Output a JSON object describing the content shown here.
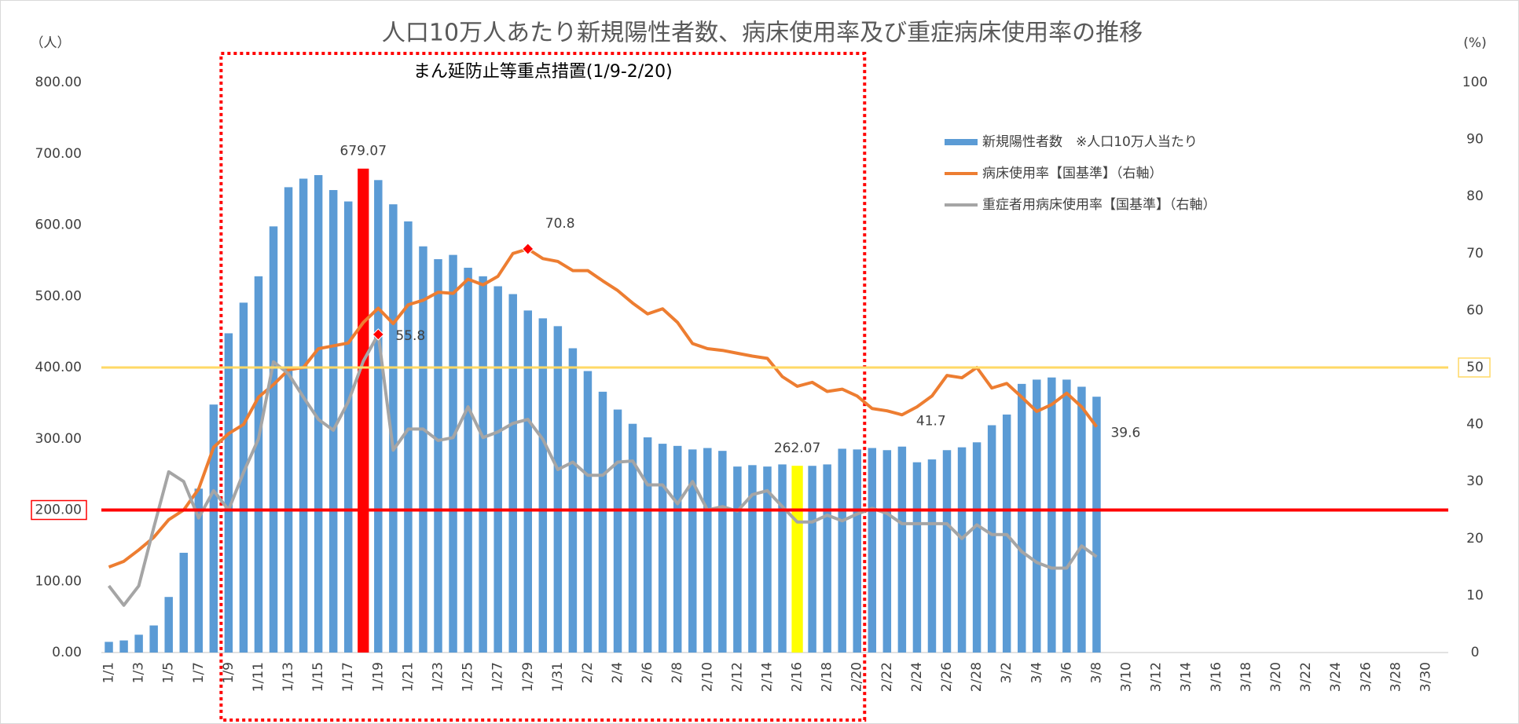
{
  "chart_data": {
    "type": "bar_line",
    "title": "人口10万人あたり新規陽性者数、病床使用率及び重症病床使用率の推移",
    "y_unit": "（人）",
    "y2_unit": "(%)",
    "categories": [
      "1/1",
      null,
      "1/3",
      null,
      "1/5",
      null,
      "1/7",
      null,
      "1/9",
      null,
      "1/11",
      null,
      "1/13",
      null,
      "1/15",
      null,
      "1/17",
      null,
      "1/19",
      null,
      "1/21",
      null,
      "1/23",
      null,
      "1/25",
      null,
      "1/27",
      null,
      "1/29",
      null,
      "1/31",
      null,
      "2/2",
      null,
      "2/4",
      null,
      "2/6",
      null,
      "2/8",
      null,
      "2/10",
      null,
      "2/12",
      null,
      "2/14",
      null,
      "2/16",
      null,
      "2/18",
      null,
      "2/20",
      null,
      "2/22",
      null,
      "2/24",
      null,
      "2/26",
      null,
      "2/28",
      null,
      "3/2",
      null,
      "3/4",
      null,
      "3/6",
      null,
      "3/8",
      null,
      "3/10",
      null,
      "3/12",
      null,
      "3/14",
      null,
      "3/16",
      null,
      "3/18",
      null,
      "3/20",
      null,
      "3/22",
      null,
      "3/24",
      null,
      "3/26",
      null,
      "3/28",
      null,
      "3/30",
      null
    ],
    "series": [
      {
        "name": "新規陽性者数　※人口10万人当たり",
        "type": "bar",
        "color": "#5b9bd5",
        "point_colors": {
          "17": "#ff0000",
          "46": "#ffff00"
        },
        "label_indices": [
          17,
          46
        ],
        "values": [
          15,
          17,
          25,
          38,
          78,
          140,
          230,
          348,
          448,
          491,
          528,
          598,
          653,
          665,
          670,
          649,
          633,
          679.07,
          663,
          629,
          605,
          570,
          552,
          558,
          540,
          528,
          514,
          503,
          480,
          469,
          458,
          427,
          395,
          366,
          341,
          321,
          302,
          293,
          290,
          285,
          287,
          283,
          261,
          263,
          261,
          264,
          262.07,
          262,
          264,
          286,
          285,
          287,
          284,
          289,
          267,
          271,
          284,
          288,
          295,
          319,
          334,
          377,
          383,
          386,
          383,
          373,
          359,
          null,
          null,
          null,
          null,
          null,
          null,
          null,
          null,
          null,
          null,
          null,
          null,
          null,
          null,
          null,
          null,
          null,
          null,
          null,
          null,
          null,
          null,
          null
        ]
      },
      {
        "name": "病床使用率【国基準】（右軸）",
        "type": "line",
        "axis": "y2",
        "color": "#ed7d31",
        "label_indices": [
          28,
          53,
          66
        ],
        "marker_indices": [
          28
        ],
        "values": [
          15,
          16,
          18,
          20.2,
          23.3,
          25,
          28.7,
          36,
          38.4,
          40,
          44.8,
          47,
          49.6,
          50,
          53.3,
          53.8,
          54.3,
          57.9,
          60.4,
          57.7,
          61,
          61.8,
          63.2,
          63,
          65.5,
          64.5,
          66,
          70,
          70.8,
          69.1,
          68.6,
          67,
          67,
          65.2,
          63.5,
          61.3,
          59.4,
          60.3,
          57.9,
          54.2,
          53.3,
          53,
          52.5,
          52,
          51.6,
          48.4,
          46.7,
          47.4,
          45.8,
          46.2,
          45,
          42.8,
          42.4,
          41.7,
          43.1,
          45,
          48.6,
          48.2,
          50,
          46.4,
          47.2,
          44.8,
          42.3,
          43.5,
          45.5,
          43.1,
          39.6,
          null,
          null,
          null,
          null,
          null,
          null,
          null,
          null,
          null,
          null,
          null,
          null,
          null,
          null,
          null,
          null,
          null,
          null,
          null,
          null,
          null,
          null,
          null
        ]
      },
      {
        "name": "重症者用病床使用率【国基準】（右軸）",
        "type": "line",
        "axis": "y2",
        "color": "#a5a5a5",
        "label_indices": [
          18
        ],
        "marker_indices": [
          18
        ],
        "values": [
          11.7,
          8.3,
          11.7,
          21.9,
          31.7,
          30,
          23.6,
          28.4,
          25,
          31.6,
          37.5,
          51,
          48.9,
          44.8,
          40.9,
          39,
          44,
          51.1,
          55.8,
          35.5,
          39.2,
          39.2,
          37.2,
          37.7,
          43.1,
          37.7,
          38.7,
          40.2,
          40.9,
          37.4,
          32.1,
          33.4,
          31.1,
          31.1,
          33.4,
          33.6,
          29.4,
          29.4,
          26.1,
          30,
          25,
          25.6,
          24.8,
          27.7,
          28.4,
          25.6,
          22.9,
          22.9,
          24.1,
          23.1,
          24.3,
          25.3,
          24.4,
          22.6,
          22.6,
          22.6,
          22.6,
          20,
          22.4,
          20.7,
          20.7,
          17.7,
          15.8,
          14.8,
          14.8,
          18.7,
          16.8,
          null,
          null,
          null,
          null,
          null,
          null,
          null,
          null,
          null,
          null,
          null,
          null,
          null,
          null,
          null,
          null,
          null,
          null,
          null,
          null,
          null,
          null,
          null
        ]
      }
    ],
    "ylim": [
      0,
      800
    ],
    "yticks": [
      {
        "value": 0,
        "label": "0.00"
      },
      {
        "value": 100,
        "label": "100.00"
      },
      {
        "value": 200,
        "label": "200.00"
      },
      {
        "value": 300,
        "label": "300.00"
      },
      {
        "value": 400,
        "label": "400.00"
      },
      {
        "value": 500,
        "label": "500.00"
      },
      {
        "value": 600,
        "label": "600.00"
      },
      {
        "value": 700,
        "label": "700.00"
      },
      {
        "value": 800,
        "label": "800.00"
      }
    ],
    "y2lim": [
      0,
      100
    ],
    "y2ticks": [
      0,
      10,
      20,
      30,
      40,
      50,
      60,
      70,
      80,
      90,
      100
    ],
    "reference_lines": [
      {
        "value": 200,
        "axis": "y",
        "color": "#ff0000"
      },
      {
        "value": 50,
        "axis": "y2",
        "color": "#ffd966"
      }
    ],
    "period": {
      "text": "まん延防止等重点措置(1/9-2/20)",
      "from": "1/9",
      "to": "2/20",
      "color": "#ff0000"
    },
    "marker_color": "#ff0000",
    "grid": false
  }
}
